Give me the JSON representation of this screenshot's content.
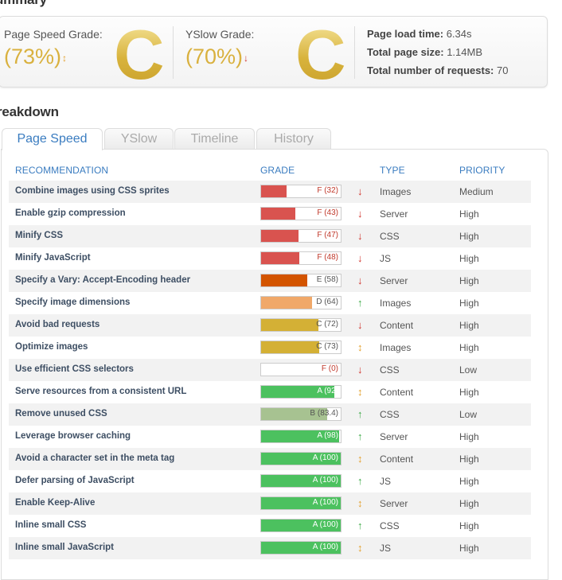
{
  "summary": {
    "title": "ummary",
    "page_speed": {
      "label": "Page Speed Grade:",
      "value": "(73%)",
      "arrow": "↕",
      "letter": "C"
    },
    "yslow": {
      "label": "YSlow Grade:",
      "value": "(70%)",
      "arrow": "↓",
      "letter": "C"
    },
    "stats": [
      {
        "label": "Page load time:",
        "value": "6.34s"
      },
      {
        "label": "Total page size:",
        "value": "1.14MB"
      },
      {
        "label": "Total number of requests:",
        "value": "70"
      }
    ]
  },
  "breakdown": {
    "title": "reakdown",
    "tabs": [
      "Page Speed",
      "YSlow",
      "Timeline",
      "History"
    ],
    "active_tab": "Page Speed",
    "headers": {
      "recommendation": "RECOMMENDATION",
      "grade": "GRADE",
      "type": "TYPE",
      "priority": "PRIORITY"
    },
    "rows": [
      {
        "rec": "Combine images using CSS sprites",
        "grade": "F (32)",
        "score": 32,
        "arrow": "↓",
        "type": "Images",
        "priority": "Medium"
      },
      {
        "rec": "Enable gzip compression",
        "grade": "F (43)",
        "score": 43,
        "arrow": "↓",
        "type": "Server",
        "priority": "High"
      },
      {
        "rec": "Minify CSS",
        "grade": "F (47)",
        "score": 47,
        "arrow": "↓",
        "type": "CSS",
        "priority": "High"
      },
      {
        "rec": "Minify JavaScript",
        "grade": "F (48)",
        "score": 48,
        "arrow": "↓",
        "type": "JS",
        "priority": "High"
      },
      {
        "rec": "Specify a Vary: Accept-Encoding header",
        "grade": "E (58)",
        "score": 58,
        "arrow": "↓",
        "type": "Server",
        "priority": "High"
      },
      {
        "rec": "Specify image dimensions",
        "grade": "D (64)",
        "score": 64,
        "arrow": "↑",
        "type": "Images",
        "priority": "High"
      },
      {
        "rec": "Avoid bad requests",
        "grade": "C (72)",
        "score": 72,
        "arrow": "↓",
        "type": "Content",
        "priority": "High"
      },
      {
        "rec": "Optimize images",
        "grade": "C (73)",
        "score": 73,
        "arrow": "↕",
        "type": "Images",
        "priority": "High"
      },
      {
        "rec": "Use efficient CSS selectors",
        "grade": "F (0)",
        "score": 0,
        "arrow": "↓",
        "type": "CSS",
        "priority": "Low"
      },
      {
        "rec": "Serve resources from a consistent URL",
        "grade": "A (92)",
        "score": 92,
        "arrow": "↕",
        "type": "Content",
        "priority": "High"
      },
      {
        "rec": "Remove unused CSS",
        "grade": "B (83.4)",
        "score": 83.4,
        "arrow": "↑",
        "type": "CSS",
        "priority": "Low"
      },
      {
        "rec": "Leverage browser caching",
        "grade": "A (98)",
        "score": 98,
        "arrow": "↑",
        "type": "Server",
        "priority": "High"
      },
      {
        "rec": "Avoid a character set in the meta tag",
        "grade": "A (100)",
        "score": 100,
        "arrow": "↕",
        "type": "Content",
        "priority": "High"
      },
      {
        "rec": "Defer parsing of JavaScript",
        "grade": "A (100)",
        "score": 100,
        "arrow": "↑",
        "type": "JS",
        "priority": "High"
      },
      {
        "rec": "Enable Keep-Alive",
        "grade": "A (100)",
        "score": 100,
        "arrow": "↕",
        "type": "Server",
        "priority": "High"
      },
      {
        "rec": "Inline small CSS",
        "grade": "A (100)",
        "score": 100,
        "arrow": "↑",
        "type": "CSS",
        "priority": "High"
      },
      {
        "rec": "Inline small JavaScript",
        "grade": "A (100)",
        "score": 100,
        "arrow": "↕",
        "type": "JS",
        "priority": "High"
      }
    ]
  },
  "colors": {
    "grade_F": "#d9534f",
    "grade_E": "#d35400",
    "grade_D": "#f0a869",
    "grade_C": "#d4b035",
    "grade_B": "#a7c291",
    "grade_A": "#4cc15f",
    "arrow_down": "#d0342c",
    "arrow_up": "#3aa845",
    "arrow_neutral": "#e3a02c",
    "accent": "#3a7cc0"
  }
}
